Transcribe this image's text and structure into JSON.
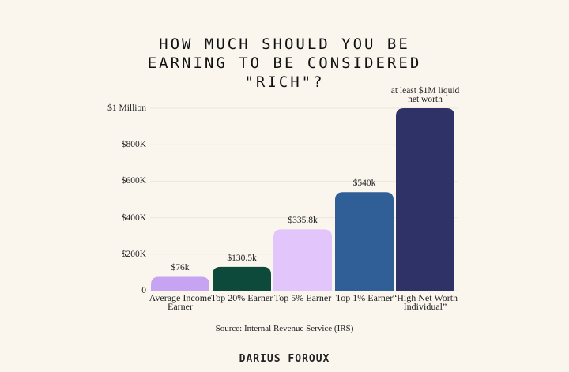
{
  "chart_data": {
    "type": "bar",
    "title": "HOW MUCH SHOULD YOU BE EARNING TO BE CONSIDERED \"RICH\"?",
    "categories": [
      "Average Income Earner",
      "Top 20% Earner",
      "Top 5% Earner",
      "Top 1% Earner",
      "“High Net Worth Individual”"
    ],
    "values": [
      76000,
      130500,
      335800,
      540000,
      1000000
    ],
    "value_labels": [
      "$76k",
      "$130.5k",
      "$335.8k",
      "$540k",
      "at least $1M liquid net worth"
    ],
    "colors": [
      "#c7a4f2",
      "#0e4a3b",
      "#e2c5fb",
      "#2f5f96",
      "#2e3266"
    ],
    "ylim": [
      0,
      1000000
    ],
    "yticks": [
      0,
      {
        "value": 200000,
        "label": "$200K"
      },
      {
        "value": 400000,
        "label": "$400K"
      },
      {
        "value": 600000,
        "label": "$600K"
      },
      {
        "value": 800000,
        "label": "$800K"
      },
      {
        "value": 1000000,
        "label": "$1 Million"
      }
    ],
    "grid": true,
    "source": "Source: Internal Revenue Service (IRS)",
    "brand": "DARIUS FOROUX"
  }
}
